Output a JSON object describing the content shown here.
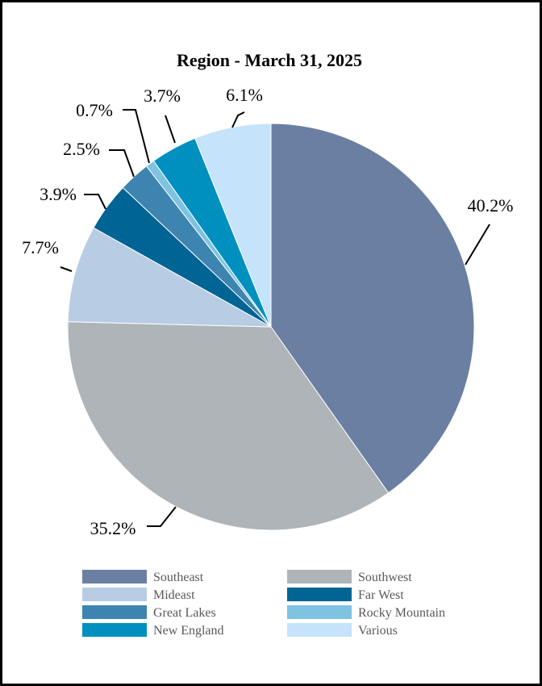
{
  "chart_data": {
    "type": "pie",
    "title": "Region - March 31, 2025",
    "slices": [
      {
        "label": "Southeast",
        "value": 40.2,
        "display": "40.2%",
        "color": "#6b7fa3"
      },
      {
        "label": "Southwest",
        "value": 35.2,
        "display": "35.2%",
        "color": "#aeb4b8"
      },
      {
        "label": "Mideast",
        "value": 7.7,
        "display": "7.7%",
        "color": "#b8cce4"
      },
      {
        "label": "Far West",
        "value": 3.9,
        "display": "3.9%",
        "color": "#006494"
      },
      {
        "label": "Great Lakes",
        "value": 2.5,
        "display": "2.5%",
        "color": "#3d85b0"
      },
      {
        "label": "Rocky Mountain",
        "value": 0.7,
        "display": "0.7%",
        "color": "#7ec3e2"
      },
      {
        "label": "New England",
        "value": 3.7,
        "display": "3.7%",
        "color": "#0090c0"
      },
      {
        "label": "Various",
        "value": 6.1,
        "display": "6.1%",
        "color": "#c5e3fb"
      }
    ],
    "legend_position": "bottom",
    "start": "12 o'clock, clockwise"
  }
}
